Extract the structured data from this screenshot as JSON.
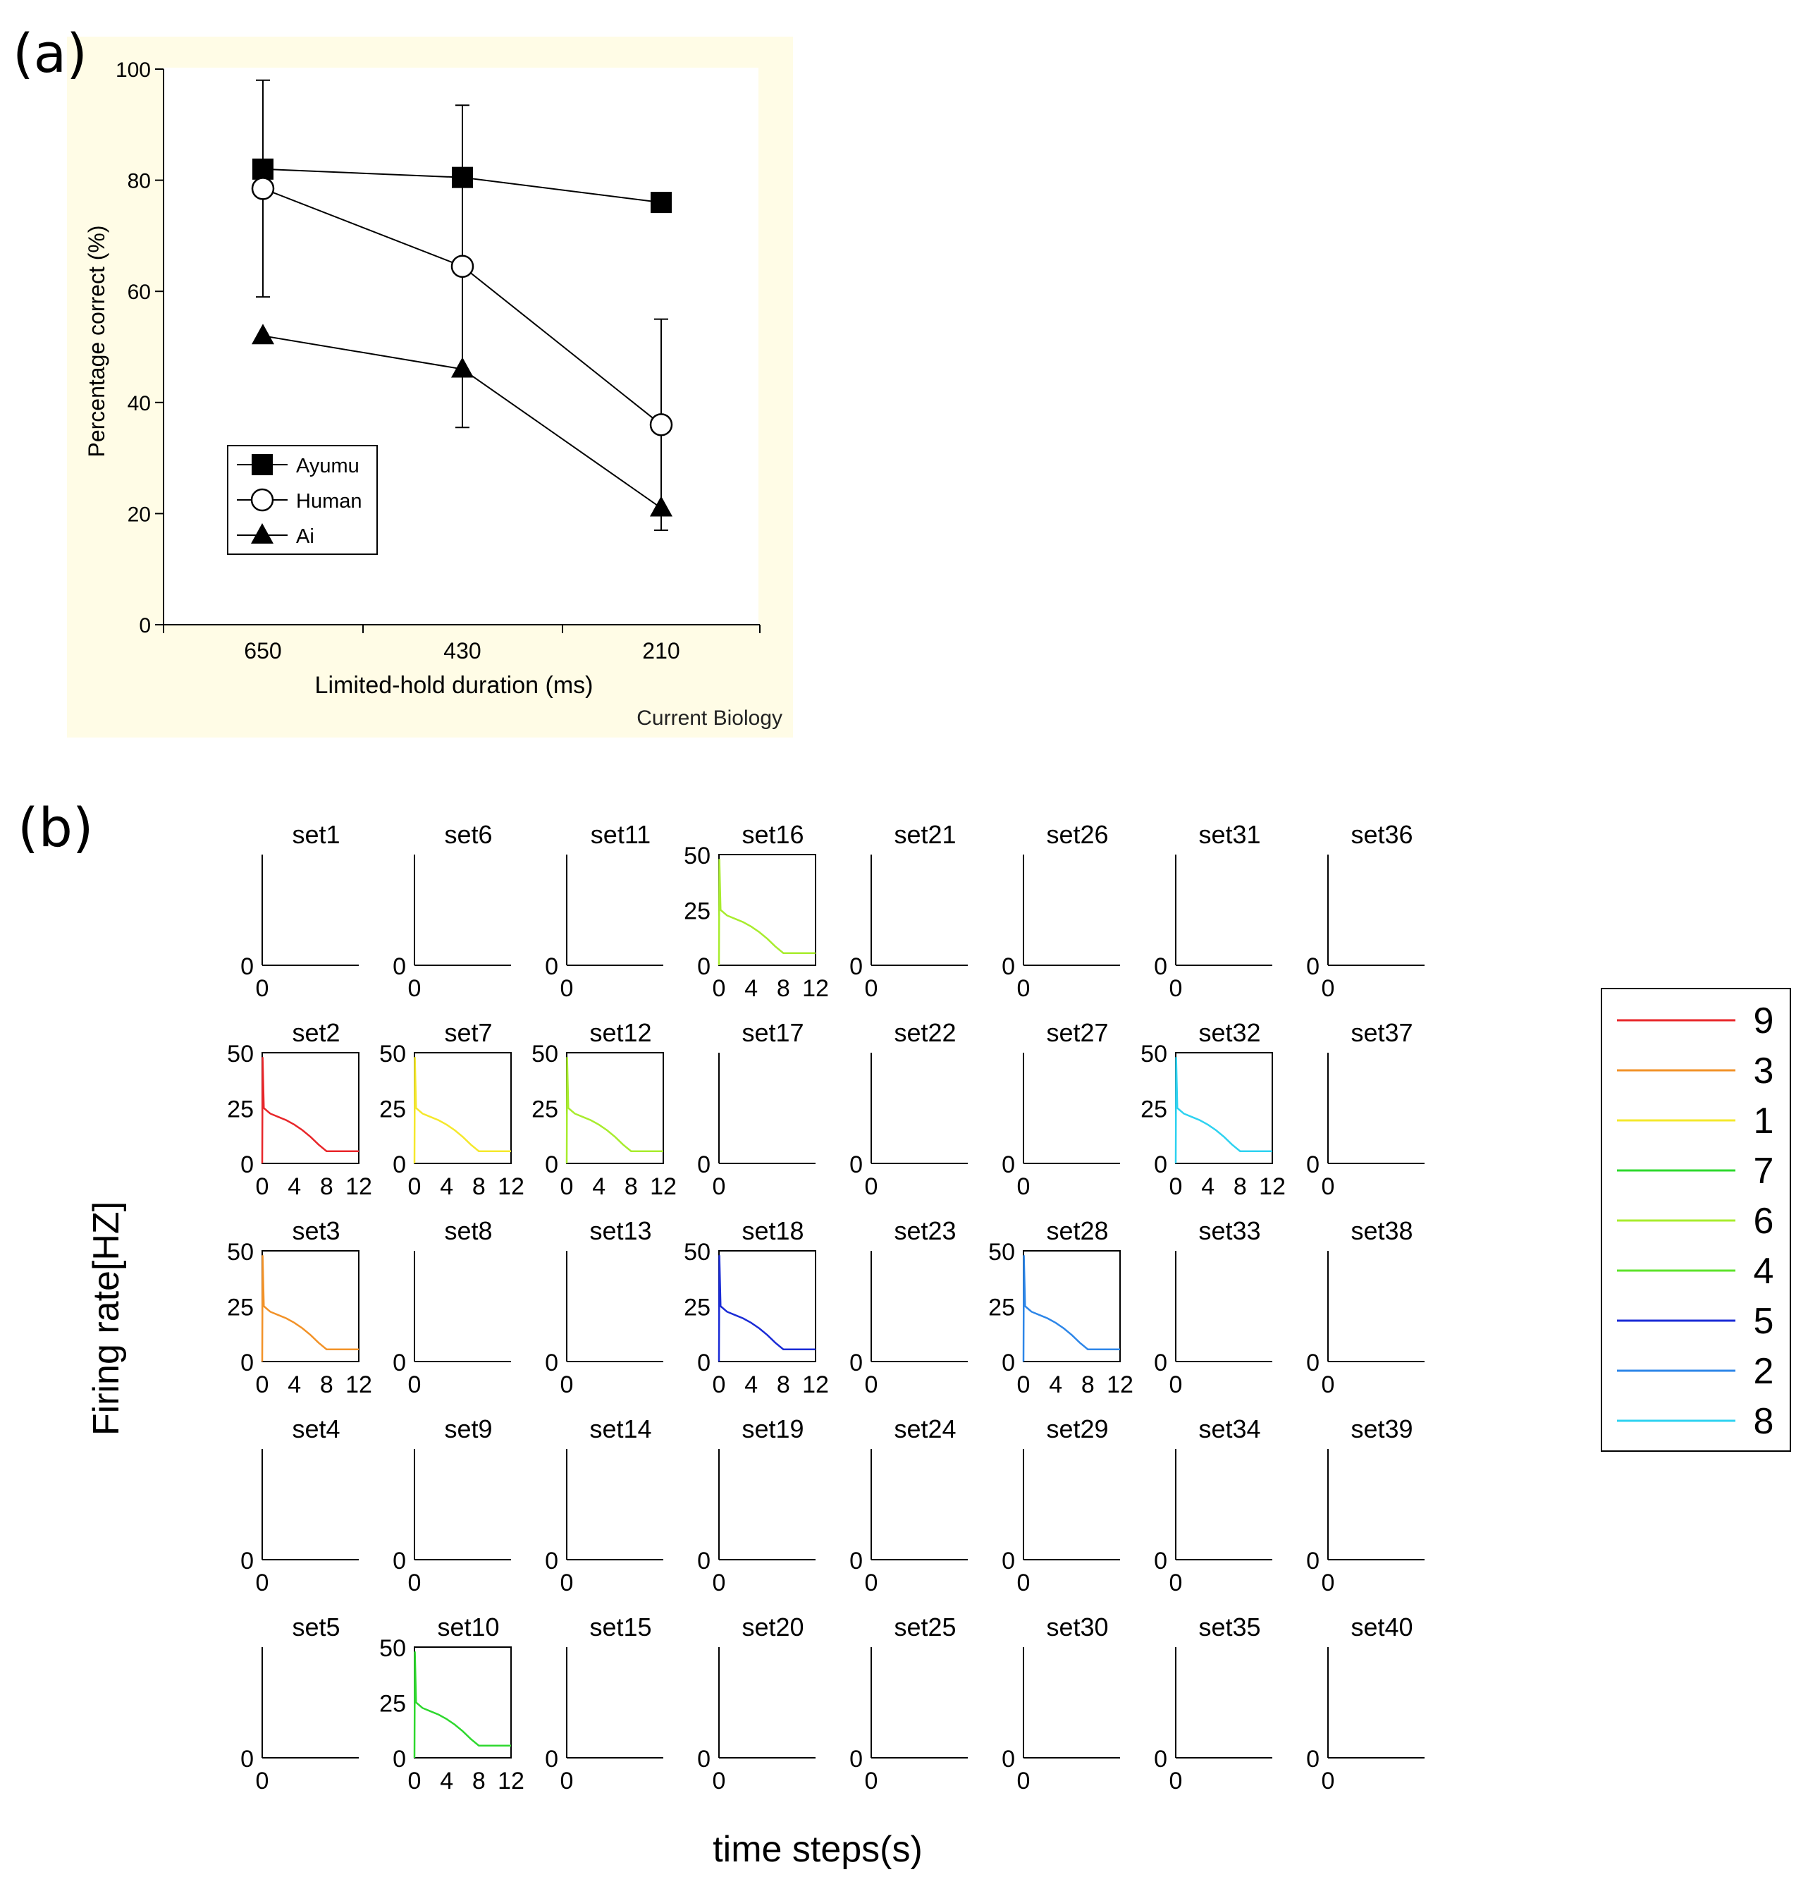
{
  "panel_a": {
    "label": "(a)",
    "credit": "Current Biology",
    "legend": [
      "Ayumu",
      "Human",
      "Ai"
    ]
  },
  "panel_b": {
    "label": "(b)",
    "xlabel": "time steps(s)",
    "ylabel": "Firing rate[HZ]"
  },
  "colors": {
    "panel_a_background": "#fffce6",
    "9": "#e8262a",
    "3": "#f29228",
    "1": "#f5e82c",
    "7": "#2ed82e",
    "6": "#a8ec2e",
    "4": "#5ee32b",
    "5": "#1a2bd6",
    "2": "#2d86e8",
    "8": "#2ed2f0"
  },
  "chart_data": [
    {
      "type": "line",
      "title": "",
      "xlabel": "Limited-hold duration (ms)",
      "ylabel": "Percentage correct (%)",
      "categories": [
        "650",
        "430",
        "210"
      ],
      "ylim": [
        0,
        100
      ],
      "yticks": [
        0,
        20,
        40,
        60,
        80,
        100
      ],
      "grid": false,
      "legend_position": "bottom-left",
      "series": [
        {
          "name": "Ayumu",
          "marker": "filled-square",
          "values": [
            82,
            80.5,
            76
          ]
        },
        {
          "name": "Human",
          "marker": "open-circle",
          "values": [
            78.5,
            64.5,
            36
          ],
          "error_upper": [
            98,
            93.5,
            55
          ],
          "error_lower": [
            59,
            35.5,
            17
          ]
        },
        {
          "name": "Ai",
          "marker": "filled-triangle",
          "values": [
            52,
            46,
            21
          ]
        }
      ]
    },
    {
      "type": "line",
      "title": "",
      "xlabel": "time steps(s)",
      "ylabel": "Firing rate[HZ]",
      "grid_rows": 5,
      "grid_cols": 8,
      "xticks_active": [
        0,
        4,
        8,
        12
      ],
      "yticks_active": [
        0,
        25,
        50
      ],
      "xlim": [
        0,
        12
      ],
      "ylim": [
        0,
        50
      ],
      "legend_position": "right",
      "legend": [
        {
          "label": "9",
          "color": "#e8262a"
        },
        {
          "label": "3",
          "color": "#f29228"
        },
        {
          "label": "1",
          "color": "#f5e82c"
        },
        {
          "label": "7",
          "color": "#2ed82e"
        },
        {
          "label": "6",
          "color": "#a8ec2e"
        },
        {
          "label": "4",
          "color": "#5ee32b"
        },
        {
          "label": "5",
          "color": "#1a2bd6"
        },
        {
          "label": "2",
          "color": "#2d86e8"
        },
        {
          "label": "8",
          "color": "#2ed2f0"
        }
      ],
      "subplots": [
        {
          "title": "set1",
          "row": 0,
          "col": 0,
          "active": false
        },
        {
          "title": "set6",
          "row": 0,
          "col": 1,
          "active": false
        },
        {
          "title": "set11",
          "row": 0,
          "col": 2,
          "active": false
        },
        {
          "title": "set16",
          "row": 0,
          "col": 3,
          "active": true,
          "series": "6"
        },
        {
          "title": "set21",
          "row": 0,
          "col": 4,
          "active": false
        },
        {
          "title": "set26",
          "row": 0,
          "col": 5,
          "active": false
        },
        {
          "title": "set31",
          "row": 0,
          "col": 6,
          "active": false
        },
        {
          "title": "set36",
          "row": 0,
          "col": 7,
          "active": false
        },
        {
          "title": "set2",
          "row": 1,
          "col": 0,
          "active": true,
          "series": "9"
        },
        {
          "title": "set7",
          "row": 1,
          "col": 1,
          "active": true,
          "series": "1"
        },
        {
          "title": "set12",
          "row": 1,
          "col": 2,
          "active": true,
          "series": "6"
        },
        {
          "title": "set17",
          "row": 1,
          "col": 3,
          "active": false
        },
        {
          "title": "set22",
          "row": 1,
          "col": 4,
          "active": false
        },
        {
          "title": "set27",
          "row": 1,
          "col": 5,
          "active": false
        },
        {
          "title": "set32",
          "row": 1,
          "col": 6,
          "active": true,
          "series": "8"
        },
        {
          "title": "set37",
          "row": 1,
          "col": 7,
          "active": false
        },
        {
          "title": "set3",
          "row": 2,
          "col": 0,
          "active": true,
          "series": "3"
        },
        {
          "title": "set8",
          "row": 2,
          "col": 1,
          "active": false
        },
        {
          "title": "set13",
          "row": 2,
          "col": 2,
          "active": false
        },
        {
          "title": "set18",
          "row": 2,
          "col": 3,
          "active": true,
          "series": "5"
        },
        {
          "title": "set23",
          "row": 2,
          "col": 4,
          "active": false
        },
        {
          "title": "set28",
          "row": 2,
          "col": 5,
          "active": true,
          "series": "2"
        },
        {
          "title": "set33",
          "row": 2,
          "col": 6,
          "active": false
        },
        {
          "title": "set38",
          "row": 2,
          "col": 7,
          "active": false
        },
        {
          "title": "set4",
          "row": 3,
          "col": 0,
          "active": false
        },
        {
          "title": "set9",
          "row": 3,
          "col": 1,
          "active": false
        },
        {
          "title": "set14",
          "row": 3,
          "col": 2,
          "active": false
        },
        {
          "title": "set19",
          "row": 3,
          "col": 3,
          "active": false
        },
        {
          "title": "set24",
          "row": 3,
          "col": 4,
          "active": false
        },
        {
          "title": "set29",
          "row": 3,
          "col": 5,
          "active": false
        },
        {
          "title": "set34",
          "row": 3,
          "col": 6,
          "active": false
        },
        {
          "title": "set39",
          "row": 3,
          "col": 7,
          "active": false
        },
        {
          "title": "set5",
          "row": 4,
          "col": 0,
          "active": false
        },
        {
          "title": "set10",
          "row": 4,
          "col": 1,
          "active": true,
          "series": "7"
        },
        {
          "title": "set15",
          "row": 4,
          "col": 2,
          "active": false
        },
        {
          "title": "set20",
          "row": 4,
          "col": 3,
          "active": false
        },
        {
          "title": "set25",
          "row": 4,
          "col": 4,
          "active": false
        },
        {
          "title": "set30",
          "row": 4,
          "col": 5,
          "active": false
        },
        {
          "title": "set35",
          "row": 4,
          "col": 6,
          "active": false
        },
        {
          "title": "set40",
          "row": 4,
          "col": 7,
          "active": false
        }
      ],
      "curve": {
        "x": [
          0,
          0.05,
          0.2,
          1,
          2,
          3,
          4,
          5,
          6,
          7,
          8,
          9,
          10,
          11,
          12
        ],
        "y": [
          0,
          48,
          25,
          22.5,
          21,
          19.5,
          17.5,
          15,
          12,
          8.5,
          5.5,
          5.5,
          5.5,
          5.5,
          5.5
        ]
      }
    }
  ]
}
